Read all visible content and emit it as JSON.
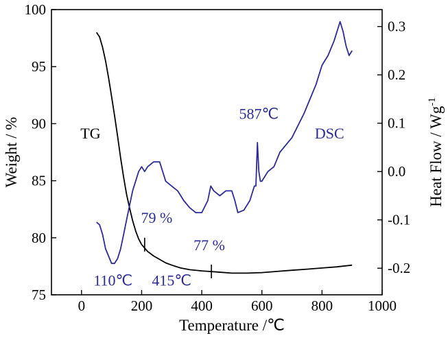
{
  "chart_data": {
    "type": "line",
    "xlabel": "Temperature /℃",
    "ylabel": "Weight / %",
    "y2label": "Heat Flow / Wg",
    "y2label_superscript": "-1",
    "xlim": [
      -100,
      1000
    ],
    "ylim": [
      75,
      100
    ],
    "y2lim": [
      -0.255,
      0.335
    ],
    "x_ticks": [
      0,
      200,
      400,
      600,
      800,
      1000
    ],
    "y_ticks": [
      75,
      80,
      85,
      90,
      95,
      100
    ],
    "y2_ticks": [
      "-0.2",
      "-0.1",
      "0.0",
      "0.1",
      "0.2",
      "0.3"
    ],
    "grid": false,
    "colors": {
      "tg": "#000000",
      "dsc": "#2a2a9a"
    },
    "series": [
      {
        "name": "TG",
        "axis": "left",
        "x": [
          50,
          60,
          70,
          80,
          90,
          100,
          110,
          120,
          130,
          140,
          150,
          160,
          170,
          180,
          190,
          200,
          220,
          240,
          260,
          280,
          300,
          330,
          360,
          400,
          450,
          500,
          550,
          600,
          650,
          700,
          750,
          800,
          850,
          900
        ],
        "y": [
          98.0,
          97.6,
          96.7,
          95.5,
          94.0,
          92.4,
          90.7,
          88.9,
          87.0,
          85.3,
          83.8,
          82.6,
          81.5,
          80.6,
          79.9,
          79.4,
          78.8,
          78.4,
          78.1,
          77.8,
          77.6,
          77.35,
          77.2,
          77.1,
          77.0,
          76.9,
          76.9,
          76.95,
          77.05,
          77.15,
          77.25,
          77.35,
          77.45,
          77.6
        ]
      },
      {
        "name": "DSC",
        "axis": "right",
        "x": [
          50,
          60,
          70,
          80,
          90,
          100,
          110,
          120,
          130,
          140,
          150,
          160,
          170,
          180,
          190,
          200,
          210,
          220,
          240,
          260,
          270,
          280,
          300,
          320,
          340,
          360,
          380,
          400,
          420,
          430,
          440,
          460,
          480,
          500,
          510,
          520,
          540,
          560,
          575,
          580,
          585,
          590,
          595,
          600,
          620,
          640,
          660,
          700,
          740,
          780,
          800,
          820,
          840,
          860,
          870,
          880,
          890,
          900
        ],
        "y": [
          -0.105,
          -0.11,
          -0.13,
          -0.16,
          -0.175,
          -0.19,
          -0.19,
          -0.18,
          -0.16,
          -0.13,
          -0.1,
          -0.07,
          -0.04,
          -0.02,
          0.0,
          0.01,
          0.0,
          0.01,
          0.02,
          0.02,
          0.0,
          -0.02,
          -0.03,
          -0.04,
          -0.06,
          -0.075,
          -0.085,
          -0.085,
          -0.06,
          -0.03,
          -0.04,
          -0.05,
          -0.04,
          -0.04,
          -0.06,
          -0.085,
          -0.08,
          -0.06,
          -0.03,
          -0.03,
          0.06,
          0.0,
          -0.02,
          -0.02,
          0.0,
          0.01,
          0.04,
          0.07,
          0.12,
          0.18,
          0.22,
          0.24,
          0.27,
          0.31,
          0.29,
          0.26,
          0.24,
          0.25
        ]
      }
    ],
    "annotations": [
      {
        "id": "label_tg",
        "text": "TG",
        "color": "tg",
        "x": 30,
        "y": 88.7
      },
      {
        "id": "label_dsc",
        "text": "DSC",
        "color": "dsc",
        "x": 825,
        "y": 88.7
      },
      {
        "id": "peak_587",
        "text": "587℃",
        "color": "dsc",
        "x": 590,
        "y": 90.4
      },
      {
        "id": "pct_79",
        "text": "79 %",
        "color": "dsc",
        "x": 250,
        "y": 81.3
      },
      {
        "id": "pct_77",
        "text": "77 %",
        "color": "dsc",
        "x": 425,
        "y": 78.9
      },
      {
        "id": "temp_110",
        "text": "110℃",
        "color": "dsc",
        "x": 105,
        "y": 75.8
      },
      {
        "id": "temp_415",
        "text": "415℃",
        "color": "dsc",
        "x": 300,
        "y": 75.8
      }
    ],
    "tick_marks": [
      {
        "id": "mark_79",
        "x": 210,
        "y": 79.4
      },
      {
        "id": "mark_77",
        "x": 432,
        "y": 77.05
      }
    ]
  }
}
